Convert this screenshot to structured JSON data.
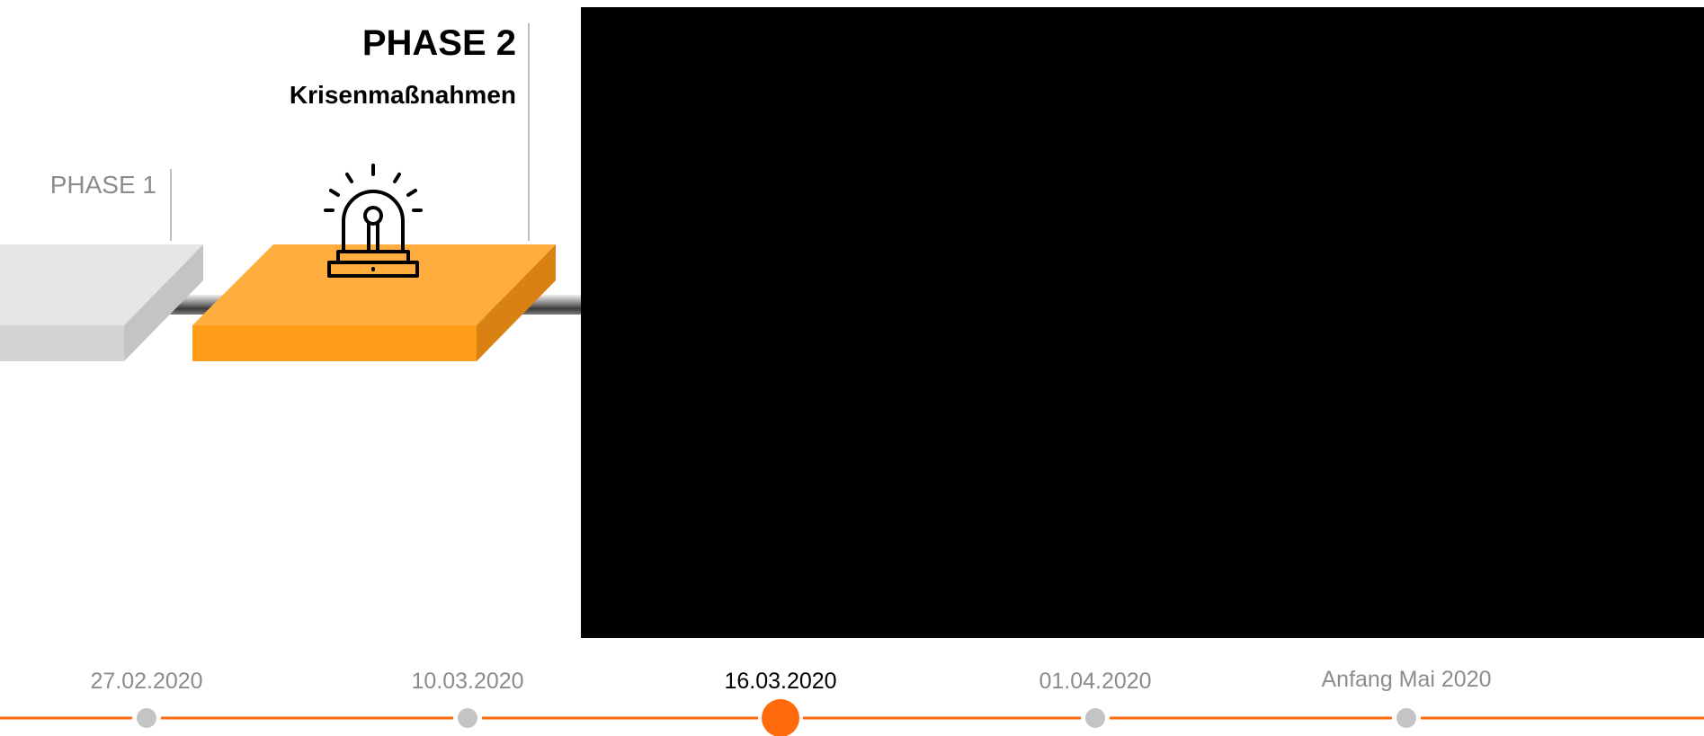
{
  "phases": {
    "phase1": {
      "label": "PHASE 1"
    },
    "phase2": {
      "title": "PHASE 2",
      "subtitle": "Krisenmaßnahmen"
    }
  },
  "colors": {
    "accent_orange": "#ff6a0d",
    "block_orange": "#ff9d1a",
    "block_gray": "#d8d8d8",
    "timeline_dot_gray": "#c4c4c4",
    "muted_text": "#8c8c8c"
  },
  "icons": {
    "phase2": "alarm-siren-icon"
  },
  "timeline": {
    "dates": [
      {
        "label": "27.02.2020",
        "active": false
      },
      {
        "label": "10.03.2020",
        "active": false
      },
      {
        "label": "16.03.2020",
        "active": true
      },
      {
        "label": "01.04.2020",
        "active": false
      },
      {
        "label": "Anfang Mai 2020",
        "active": false
      }
    ]
  }
}
